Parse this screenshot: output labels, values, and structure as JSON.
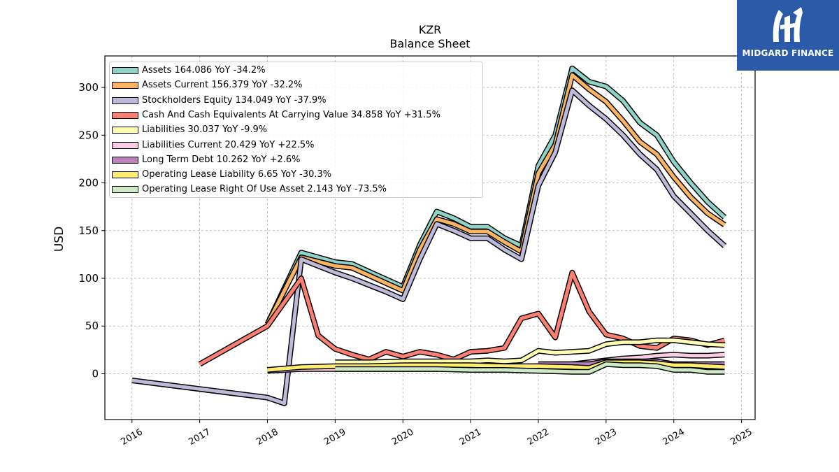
{
  "chart_data": {
    "type": "line",
    "title": "KZR",
    "subtitle": "Balance  Sheet",
    "ylabel": "USD",
    "xlabel": "",
    "ylim": [
      -48,
      333
    ],
    "xlim": [
      2015.6,
      2025.2
    ],
    "yticks": [
      0,
      50,
      100,
      150,
      200,
      250,
      300
    ],
    "xticks": [
      "2016",
      "2017",
      "2018",
      "2019",
      "2020",
      "2021",
      "2022",
      "2023",
      "2024",
      "2025"
    ],
    "grid": true,
    "legend_position": "top-left",
    "series": [
      {
        "name": "Assets  164.086 YoY -34.2%",
        "color": "#8dd3c7",
        "points": [
          [
            2018.0,
            52
          ],
          [
            2018.5,
            127
          ],
          [
            2019.0,
            117
          ],
          [
            2019.25,
            115
          ],
          [
            2019.5,
            107
          ],
          [
            2019.75,
            99
          ],
          [
            2020.0,
            91
          ],
          [
            2020.25,
            135
          ],
          [
            2020.5,
            170
          ],
          [
            2020.75,
            163
          ],
          [
            2021.0,
            154
          ],
          [
            2021.25,
            154
          ],
          [
            2021.5,
            142
          ],
          [
            2021.75,
            134
          ],
          [
            2022.0,
            218
          ],
          [
            2022.25,
            250
          ],
          [
            2022.5,
            320
          ],
          [
            2022.75,
            306
          ],
          [
            2023.0,
            301
          ],
          [
            2023.25,
            286
          ],
          [
            2023.5,
            263
          ],
          [
            2023.75,
            250
          ],
          [
            2024.0,
            222
          ],
          [
            2024.25,
            200
          ],
          [
            2024.5,
            180
          ],
          [
            2024.75,
            164
          ]
        ]
      },
      {
        "name": "Assets Current  156.379 YoY -32.2%",
        "color": "#fdb462",
        "points": [
          [
            2018.0,
            52
          ],
          [
            2018.5,
            122
          ],
          [
            2019.0,
            113
          ],
          [
            2019.25,
            111
          ],
          [
            2019.5,
            103
          ],
          [
            2019.75,
            95
          ],
          [
            2020.0,
            87
          ],
          [
            2020.25,
            130
          ],
          [
            2020.5,
            162
          ],
          [
            2020.75,
            157
          ],
          [
            2021.0,
            149
          ],
          [
            2021.25,
            149
          ],
          [
            2021.5,
            138
          ],
          [
            2021.75,
            128
          ],
          [
            2022.0,
            210
          ],
          [
            2022.25,
            240
          ],
          [
            2022.5,
            313
          ],
          [
            2022.75,
            298
          ],
          [
            2023.0,
            285
          ],
          [
            2023.25,
            265
          ],
          [
            2023.5,
            243
          ],
          [
            2023.75,
            230
          ],
          [
            2024.0,
            206
          ],
          [
            2024.25,
            185
          ],
          [
            2024.5,
            168
          ],
          [
            2024.75,
            156
          ]
        ]
      },
      {
        "name": "Stockholders Equity  134.049 YoY -37.9%",
        "color": "#bebada",
        "points": [
          [
            2016.0,
            -7
          ],
          [
            2018.0,
            -25
          ],
          [
            2018.25,
            -31
          ],
          [
            2018.5,
            120
          ],
          [
            2019.0,
            106
          ],
          [
            2019.25,
            100
          ],
          [
            2019.5,
            93
          ],
          [
            2019.75,
            86
          ],
          [
            2020.0,
            78
          ],
          [
            2020.25,
            120
          ],
          [
            2020.5,
            157
          ],
          [
            2020.75,
            150
          ],
          [
            2021.0,
            142
          ],
          [
            2021.25,
            142
          ],
          [
            2021.5,
            130
          ],
          [
            2021.75,
            120
          ],
          [
            2022.0,
            197
          ],
          [
            2022.25,
            232
          ],
          [
            2022.5,
            297
          ],
          [
            2022.75,
            281
          ],
          [
            2023.0,
            267
          ],
          [
            2023.25,
            250
          ],
          [
            2023.5,
            230
          ],
          [
            2023.75,
            214
          ],
          [
            2024.0,
            186
          ],
          [
            2024.25,
            168
          ],
          [
            2024.5,
            150
          ],
          [
            2024.75,
            134
          ]
        ]
      },
      {
        "name": "Cash And Cash Equivalents At Carrying Value  34.858 YoY +31.5%",
        "color": "#fb8072",
        "points": [
          [
            2017.0,
            10
          ],
          [
            2018.0,
            50
          ],
          [
            2018.5,
            100
          ],
          [
            2018.75,
            40
          ],
          [
            2019.0,
            26
          ],
          [
            2019.25,
            20
          ],
          [
            2019.5,
            15
          ],
          [
            2019.75,
            23
          ],
          [
            2020.0,
            18
          ],
          [
            2020.25,
            23
          ],
          [
            2020.5,
            20
          ],
          [
            2020.75,
            15
          ],
          [
            2021.0,
            23
          ],
          [
            2021.25,
            24
          ],
          [
            2021.5,
            27
          ],
          [
            2021.75,
            58
          ],
          [
            2022.0,
            63
          ],
          [
            2022.25,
            38
          ],
          [
            2022.5,
            106
          ],
          [
            2022.75,
            65
          ],
          [
            2023.0,
            41
          ],
          [
            2023.25,
            37
          ],
          [
            2023.5,
            29
          ],
          [
            2023.75,
            27
          ],
          [
            2024.0,
            37
          ],
          [
            2024.25,
            35
          ],
          [
            2024.5,
            30
          ],
          [
            2024.75,
            35
          ]
        ]
      },
      {
        "name": "Liabilities  30.037 YoY -9.9%",
        "color": "#ffffb3",
        "points": [
          [
            2019.0,
            12
          ],
          [
            2019.5,
            12
          ],
          [
            2020.0,
            13
          ],
          [
            2020.5,
            13
          ],
          [
            2021.0,
            13
          ],
          [
            2021.25,
            14
          ],
          [
            2021.5,
            13
          ],
          [
            2021.75,
            14
          ],
          [
            2022.0,
            24
          ],
          [
            2022.25,
            22
          ],
          [
            2022.5,
            23
          ],
          [
            2022.75,
            24
          ],
          [
            2023.0,
            31
          ],
          [
            2023.25,
            33
          ],
          [
            2023.5,
            33
          ],
          [
            2023.75,
            35
          ],
          [
            2024.0,
            35
          ],
          [
            2024.25,
            33
          ],
          [
            2024.5,
            31
          ],
          [
            2024.75,
            30
          ]
        ]
      },
      {
        "name": "Liabilities Current  20.429 YoY +22.5%",
        "color": "#fccde5",
        "points": [
          [
            2018.0,
            3
          ],
          [
            2018.5,
            5
          ],
          [
            2019.0,
            5
          ],
          [
            2019.5,
            5
          ],
          [
            2020.0,
            5
          ],
          [
            2020.5,
            5
          ],
          [
            2021.0,
            6
          ],
          [
            2021.5,
            6
          ],
          [
            2022.0,
            8
          ],
          [
            2022.5,
            10
          ],
          [
            2023.0,
            14
          ],
          [
            2023.25,
            16
          ],
          [
            2023.5,
            17
          ],
          [
            2023.75,
            19
          ],
          [
            2024.0,
            20
          ],
          [
            2024.25,
            19
          ],
          [
            2024.5,
            19
          ],
          [
            2024.75,
            20
          ]
        ]
      },
      {
        "name": "Long Term Debt  10.262 YoY +2.6%",
        "color": "#bc80bd",
        "points": [
          [
            2022.0,
            10
          ],
          [
            2022.25,
            10
          ],
          [
            2022.5,
            10
          ],
          [
            2022.75,
            10
          ],
          [
            2023.0,
            13
          ],
          [
            2023.25,
            13
          ],
          [
            2023.5,
            13
          ],
          [
            2023.75,
            13
          ],
          [
            2024.0,
            10
          ],
          [
            2024.25,
            10
          ],
          [
            2024.5,
            10
          ],
          [
            2024.75,
            10
          ]
        ]
      },
      {
        "name": "Operating Lease Liability  6.65 YoY -30.3%",
        "color": "#ffed6f",
        "points": [
          [
            2018.0,
            4
          ],
          [
            2018.5,
            7
          ],
          [
            2019.0,
            8
          ],
          [
            2019.5,
            8
          ],
          [
            2020.0,
            9
          ],
          [
            2020.5,
            9
          ],
          [
            2021.0,
            9
          ],
          [
            2021.5,
            8
          ],
          [
            2022.0,
            8
          ],
          [
            2022.5,
            7
          ],
          [
            2022.75,
            6
          ],
          [
            2023.0,
            12
          ],
          [
            2023.25,
            12
          ],
          [
            2023.5,
            12
          ],
          [
            2023.75,
            11
          ],
          [
            2024.0,
            9
          ],
          [
            2024.25,
            9
          ],
          [
            2024.5,
            8
          ],
          [
            2024.75,
            7
          ]
        ]
      },
      {
        "name": "Operating Lease Right Of Use Asset  2.143 YoY -73.5%",
        "color": "#ccebc5",
        "points": [
          [
            2019.0,
            5
          ],
          [
            2019.5,
            5
          ],
          [
            2020.0,
            5
          ],
          [
            2020.5,
            5
          ],
          [
            2021.0,
            4
          ],
          [
            2021.5,
            4
          ],
          [
            2022.0,
            3
          ],
          [
            2022.5,
            2
          ],
          [
            2022.75,
            2
          ],
          [
            2023.0,
            10
          ],
          [
            2023.25,
            9
          ],
          [
            2023.5,
            9
          ],
          [
            2023.75,
            8
          ],
          [
            2024.0,
            4
          ],
          [
            2024.25,
            4
          ],
          [
            2024.5,
            2
          ],
          [
            2024.75,
            2
          ]
        ]
      }
    ]
  },
  "logo": {
    "text": "MIDGARD FINANCE",
    "bg_color": "#2b5aa8"
  }
}
